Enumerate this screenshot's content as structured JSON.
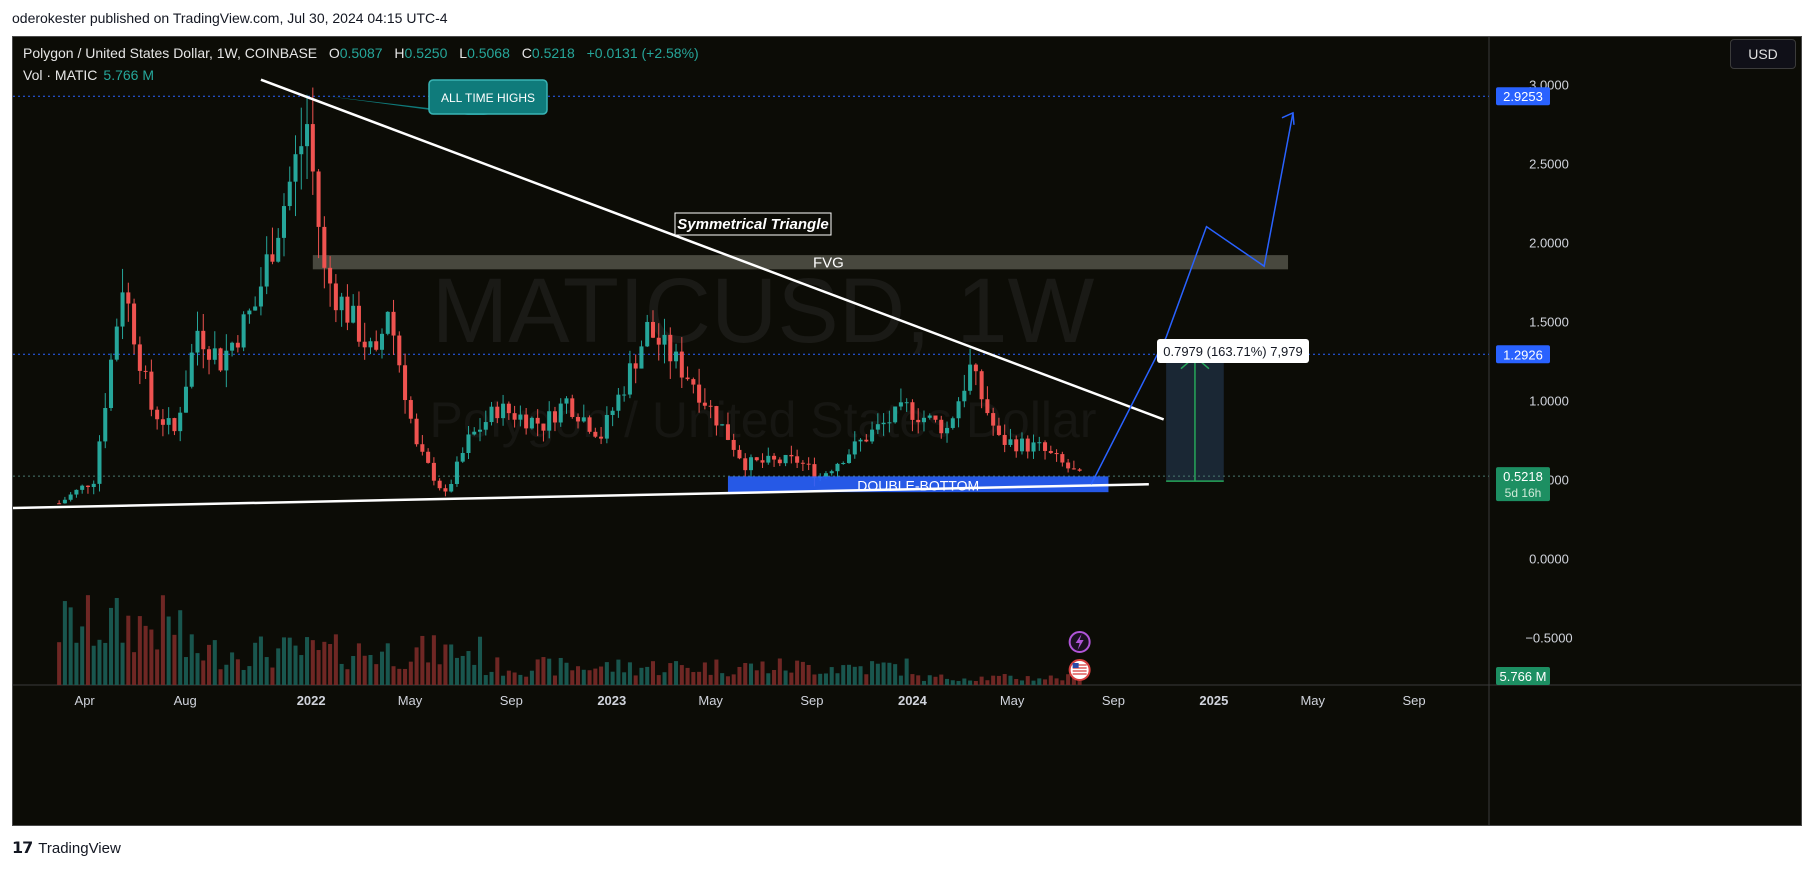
{
  "header": {
    "published": "oderokester published on TradingView.com, Jul 30, 2024 04:15 UTC-4"
  },
  "legend": {
    "symbol": "Polygon / United States Dollar, 1W, COINBASE",
    "open_label": "O",
    "open": "0.5087",
    "high_label": "H",
    "high": "0.5250",
    "low_label": "L",
    "low": "0.5068",
    "close_label": "C",
    "close": "0.5218",
    "change": "+0.0131 (+2.58%)",
    "volume_label": "Vol · MATIC",
    "volume": "5.766 M"
  },
  "currency_button": "USD",
  "watermark": {
    "ticker": "MATICUSD, 1W",
    "name": "Polygon / United States Dollar"
  },
  "footer": {
    "brand": "TradingView"
  },
  "colors": {
    "up": "#26a69a",
    "down": "#ef5350",
    "accent": "#2962ff",
    "bg": "#0c0c06"
  },
  "chart_data": {
    "type": "candlestick",
    "timeframe": "1W",
    "y_axis": {
      "ticks": [
        "3.0000",
        "2.5000",
        "2.0000",
        "1.5000",
        "1.0000",
        "0.5000",
        "0.0000",
        "−0.5000"
      ],
      "ylim": [
        -0.8,
        3.3
      ]
    },
    "x_axis": {
      "ticks": [
        "Apr",
        "Aug",
        "2022",
        "May",
        "Sep",
        "2023",
        "May",
        "Sep",
        "2024",
        "May",
        "Sep",
        "2025",
        "May",
        "Sep"
      ]
    },
    "price_labels": {
      "ath": "2.9253",
      "target": "1.2926",
      "last": "0.5218",
      "countdown": "5d 16h",
      "volume": "5.766 M"
    },
    "anchors": [
      {
        "date": "2021-03-01",
        "price": 0.35
      },
      {
        "date": "2021-04-12",
        "price": 0.5
      },
      {
        "date": "2021-05-17",
        "price": 1.75
      },
      {
        "date": "2021-06-21",
        "price": 0.95
      },
      {
        "date": "2021-07-19",
        "price": 0.8
      },
      {
        "date": "2021-08-16",
        "price": 1.45
      },
      {
        "date": "2021-09-13",
        "price": 1.25
      },
      {
        "date": "2021-10-25",
        "price": 1.6
      },
      {
        "date": "2021-11-15",
        "price": 2.0
      },
      {
        "date": "2021-12-27",
        "price": 2.75
      },
      {
        "date": "2022-01-17",
        "price": 1.8
      },
      {
        "date": "2022-02-21",
        "price": 1.5
      },
      {
        "date": "2022-03-21",
        "price": 1.25
      },
      {
        "date": "2022-04-04",
        "price": 1.6
      },
      {
        "date": "2022-05-09",
        "price": 0.7
      },
      {
        "date": "2022-06-13",
        "price": 0.4
      },
      {
        "date": "2022-07-11",
        "price": 0.75
      },
      {
        "date": "2022-08-15",
        "price": 0.95
      },
      {
        "date": "2022-10-10",
        "price": 0.85
      },
      {
        "date": "2022-11-07",
        "price": 1.0
      },
      {
        "date": "2022-12-19",
        "price": 0.78
      },
      {
        "date": "2023-01-16",
        "price": 1.1
      },
      {
        "date": "2023-02-13",
        "price": 1.45
      },
      {
        "date": "2023-04-10",
        "price": 1.12
      },
      {
        "date": "2023-06-12",
        "price": 0.6
      },
      {
        "date": "2023-08-14",
        "price": 0.62
      },
      {
        "date": "2023-09-11",
        "price": 0.52
      },
      {
        "date": "2023-11-13",
        "price": 0.8
      },
      {
        "date": "2023-12-25",
        "price": 0.95
      },
      {
        "date": "2024-02-12",
        "price": 0.82
      },
      {
        "date": "2024-03-11",
        "price": 1.2
      },
      {
        "date": "2024-04-15",
        "price": 0.75
      },
      {
        "date": "2024-06-03",
        "price": 0.7
      },
      {
        "date": "2024-07-22",
        "price": 0.52
      }
    ],
    "annotations": {
      "ath_label": "ALL TIME HIGHS",
      "pattern_label": "Symmetrical Triangle",
      "fvg_label": "FVG",
      "support_label": "DOUBLE-BOTTOM",
      "measure_label": "0.7979 (163.71%) 7,979",
      "upper_trendline": [
        {
          "date": "2021-11-01",
          "price": 3.03
        },
        {
          "date": "2024-11-01",
          "price": 0.88
        }
      ],
      "lower_trendline": [
        {
          "date": "2021-01-04",
          "price": 0.32
        },
        {
          "date": "2024-10-14",
          "price": 0.47
        }
      ],
      "fvg_zone": {
        "from": "2022-01-03",
        "to": "2025-04-01",
        "low": 1.83,
        "high": 1.92
      },
      "support_zone": {
        "from": "2023-05-22",
        "to": "2024-08-26",
        "low": 0.42,
        "high": 0.52
      },
      "measure_box": {
        "from": "2024-11-04",
        "to": "2025-01-13",
        "low": 0.49,
        "high": 1.29
      },
      "projection_path": [
        {
          "date": "2024-08-05",
          "price": 0.47
        },
        {
          "date": "2024-11-04",
          "price": 1.4
        },
        {
          "date": "2024-12-23",
          "price": 2.1
        },
        {
          "date": "2025-03-03",
          "price": 1.85
        },
        {
          "date": "2025-04-07",
          "price": 2.82
        }
      ]
    }
  }
}
